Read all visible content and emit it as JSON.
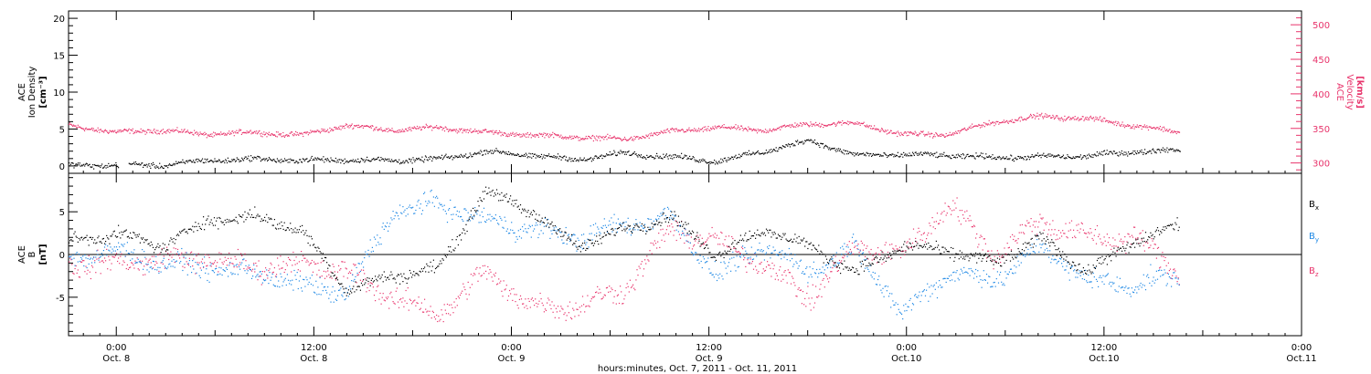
{
  "colors": {
    "black": "#000000",
    "blue": "#1e88e5",
    "red": "#e8336b"
  },
  "chart_data": [
    {
      "id": "top-panel",
      "type": "scatter",
      "ylabel_left": [
        "ACE",
        "Ion Density",
        "[cm⁻³]"
      ],
      "ylabel_right": [
        "ACE",
        "Velocity",
        "[km/s]"
      ],
      "yticks_left": [
        "0",
        "5",
        "10",
        "15",
        "20"
      ],
      "ylim_left": [
        -1,
        21
      ],
      "yticks_right": [
        "300",
        "350",
        "400",
        "450",
        "500"
      ],
      "ylim_right": [
        285,
        520
      ],
      "series": [
        {
          "color": "#000000",
          "axis": "left",
          "x": [
            0,
            4,
            8,
            12,
            16,
            20,
            24,
            28,
            32,
            36,
            40,
            44,
            48,
            52,
            56,
            60,
            64,
            68,
            72,
            76,
            80,
            84,
            88,
            92,
            96
          ],
          "values": [
            0.1,
            0.2,
            0.15,
            0.8,
            1.0,
            0.8,
            0.9,
            0.8,
            1.0,
            2.0,
            1.5,
            0.9,
            1.8,
            1.3,
            0.7,
            2.0,
            3.5,
            1.5,
            1.6,
            1.5,
            1.2,
            1.3,
            1.4,
            2.0,
            2.2
          ],
          "gaps": [
            [
              3.0,
              3.6
            ]
          ]
        },
        {
          "color": "#e8336b",
          "axis": "right",
          "x": [
            0,
            4,
            8,
            12,
            16,
            20,
            24,
            28,
            32,
            36,
            40,
            44,
            48,
            52,
            56,
            60,
            64,
            68,
            72,
            76,
            80,
            84,
            88,
            92,
            96
          ],
          "values": [
            355,
            345,
            348,
            342,
            345,
            341,
            355,
            348,
            352,
            345,
            341,
            338,
            335,
            346,
            352,
            348,
            357,
            358,
            342,
            342,
            360,
            368,
            365,
            355,
            345
          ]
        }
      ]
    },
    {
      "id": "bottom-panel",
      "type": "scatter",
      "ylabel_left": [
        "ACE",
        "B",
        "[nT]"
      ],
      "yticks_left": [
        "-5",
        "0",
        "5"
      ],
      "ylim_left": [
        -9.5,
        9.5
      ],
      "legend": [
        {
          "main": "B",
          "sub": "x",
          "color": "#000000"
        },
        {
          "main": "B",
          "sub": "y",
          "color": "#1e88e5"
        },
        {
          "main": "B",
          "sub": "z",
          "color": "#e8336b"
        }
      ],
      "series": [
        {
          "color": "#000000",
          "x": [
            0,
            4,
            8,
            12,
            16,
            20,
            24,
            28,
            32,
            36,
            40,
            44,
            48,
            52,
            56,
            60,
            64,
            68,
            72,
            76,
            80,
            84,
            88,
            92,
            96
          ],
          "values": [
            1.5,
            2.5,
            1.0,
            4.0,
            4.5,
            3.0,
            -4.0,
            -2.5,
            -1.5,
            7.5,
            5.0,
            1.0,
            3.0,
            4.5,
            0.0,
            3.0,
            1.0,
            -2.0,
            1.0,
            0.5,
            -1.0,
            2.0,
            -2.0,
            1.5,
            3.5
          ]
        },
        {
          "color": "#1e88e5",
          "x": [
            0,
            4,
            8,
            12,
            16,
            20,
            24,
            28,
            32,
            36,
            40,
            44,
            48,
            52,
            56,
            60,
            64,
            68,
            72,
            76,
            80,
            84,
            88,
            92,
            96
          ],
          "values": [
            -0.5,
            0.5,
            -1.0,
            -1.5,
            -2.0,
            -3.5,
            -4.5,
            5.0,
            6.0,
            4.0,
            3.0,
            2.0,
            3.5,
            4.5,
            -2.5,
            1.0,
            -2.0,
            1.0,
            -7.0,
            -2.0,
            -3.0,
            1.0,
            -3.0,
            -3.5,
            -2.5
          ]
        },
        {
          "color": "#e8336b",
          "x": [
            0,
            4,
            8,
            12,
            16,
            20,
            24,
            28,
            32,
            36,
            40,
            44,
            48,
            52,
            56,
            60,
            64,
            68,
            72,
            76,
            80,
            84,
            88,
            92,
            96
          ],
          "values": [
            -1.0,
            -1.0,
            -0.5,
            -0.5,
            -1.5,
            -1.0,
            -2.0,
            -5.0,
            -7.0,
            -2.0,
            -6.0,
            -6.0,
            -4.0,
            3.0,
            1.5,
            -1.0,
            -5.0,
            1.0,
            0.0,
            6.0,
            0.0,
            4.0,
            2.0,
            2.0,
            -2.0
          ]
        }
      ]
    }
  ],
  "x_axis": {
    "ticks": [
      {
        "hours": 0,
        "time": "0:00",
        "date": "Oct. 8"
      },
      {
        "hours": 12,
        "time": "12:00",
        "date": "Oct. 8"
      },
      {
        "hours": 24,
        "time": "0:00",
        "date": "Oct. 9"
      },
      {
        "hours": 36,
        "time": "12:00",
        "date": "Oct. 9"
      },
      {
        "hours": 48,
        "time": "0:00",
        "date": "Oct.10"
      },
      {
        "hours": 60,
        "time": "12:00",
        "date": "Oct.10"
      },
      {
        "hours": 72,
        "time": "0:00",
        "date": "Oct.11"
      }
    ],
    "range_hours": [
      -2.9,
      72
    ],
    "data_end_hours": 64.6,
    "xlabel": "hours:minutes, Oct. 7, 2011 - Oct. 11, 2011"
  }
}
